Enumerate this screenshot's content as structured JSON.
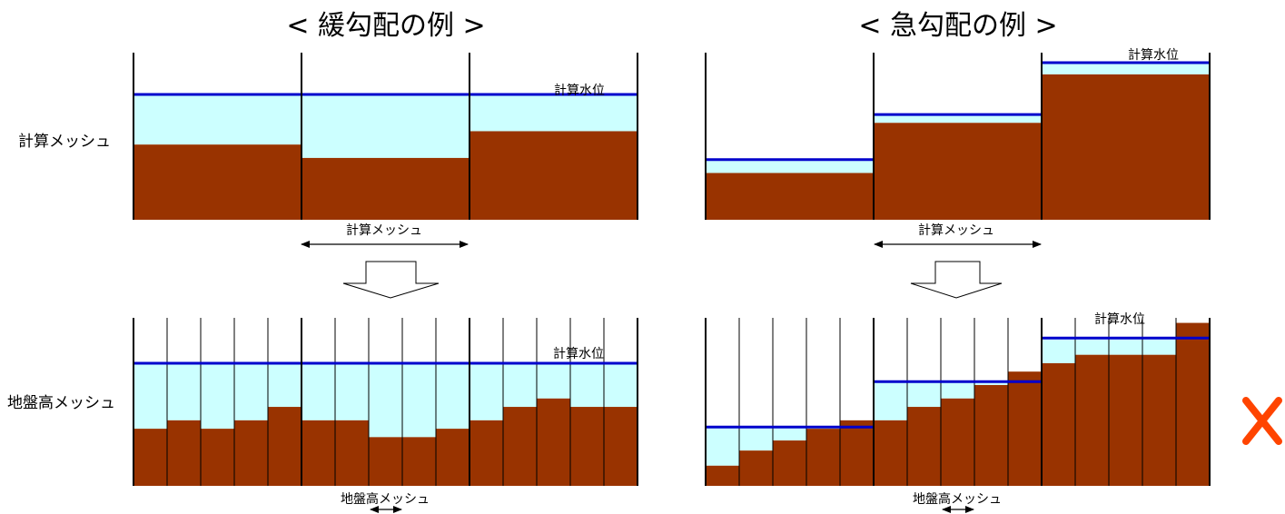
{
  "titles": {
    "gentle": "< 緩勾配の例 >",
    "steep": "< 急勾配の例 >"
  },
  "row_labels": {
    "calc_mesh": "計算メッシュ",
    "ground_mesh": "地盤高メッシュ"
  },
  "annotations": {
    "calc_water_level": "計算水位",
    "calc_mesh_span": "計算メッシュ",
    "ground_mesh_span": "地盤高メッシュ"
  },
  "colors": {
    "ground": "#993300",
    "water": "#ccffff",
    "water_level": "#0000cc",
    "mark_x": "#ff4400"
  },
  "mark_x_icon": "cross-mark-icon",
  "panels": {
    "gentle_top": {
      "cells": 3,
      "water": [
        0.75,
        0.75,
        0.75
      ],
      "ground": [
        0.45,
        0.37,
        0.53
      ]
    },
    "steep_top": {
      "cells": 3,
      "water": [
        0.36,
        0.63,
        0.94
      ],
      "ground": [
        0.28,
        0.58,
        0.87
      ]
    },
    "gentle_bottom": {
      "cells": 15,
      "water": [
        0.73,
        0.73,
        0.73,
        0.73,
        0.73,
        0.73,
        0.73,
        0.73,
        0.73,
        0.73,
        0.73,
        0.73,
        0.73,
        0.73,
        0.73
      ],
      "ground": [
        0.34,
        0.39,
        0.34,
        0.39,
        0.47,
        0.39,
        0.39,
        0.29,
        0.29,
        0.34,
        0.39,
        0.47,
        0.52,
        0.47,
        0.47
      ]
    },
    "steep_bottom": {
      "cells": 15,
      "water": [
        0.35,
        0.35,
        0.35,
        0.35,
        0.35,
        0.62,
        0.62,
        0.62,
        0.62,
        0.62,
        0.88,
        0.88,
        0.88,
        0.88,
        0.88
      ],
      "ground": [
        0.12,
        0.21,
        0.27,
        0.34,
        0.39,
        0.39,
        0.47,
        0.52,
        0.6,
        0.68,
        0.73,
        0.78,
        0.78,
        0.78,
        0.97
      ]
    }
  }
}
